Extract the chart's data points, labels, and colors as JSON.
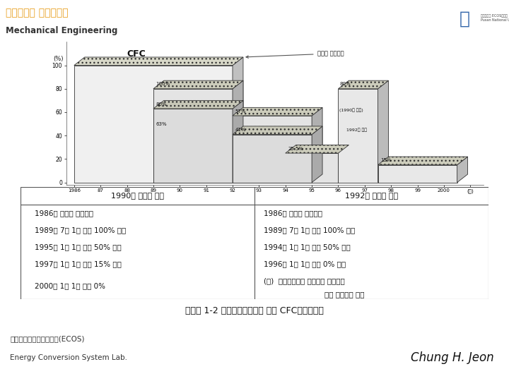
{
  "title_korean": "부산대학교 기계공학부",
  "title_english": "Mechanical Engineering",
  "title_color_korean": "#E8A020",
  "title_color_english": "#333333",
  "slide_bg": "#ffffff",
  "table_header_left": "1990년 개정된 규제",
  "table_header_right": "1992년 개정된 규제",
  "table_left_rows": [
    "1986년 실적을 기준으로",
    "1989년 7월 1일 이후 100% 이하",
    "1995년 1월 1일 이후 50% 이하",
    "1997년 1월 1일 이후 15% 이하",
    "2000년 1월 1일 이후 0%"
  ],
  "table_right_rows": [
    "1986년 실적을 기준으로",
    "1989년 7월 1일 이후 100% 이하",
    "1994년 1월 1일 이후 50% 이하",
    "1996년 1월 1일 이후 0% 이하",
    "(주)  필요불가결한 분아에서 사용하기"
  ],
  "table_right_extra": "위한 생산량은 제외",
  "caption": "〈그림 1-2 몬트리올의정서에 의한 CFC규제일정〉",
  "footer_lab": "에너지변환시스템연구실(ECOS)",
  "footer_lab_en": "Energy Conversion System Lab.",
  "footer_author": "Chung H. Jeon",
  "chart_title": "CFC",
  "chart_annotation": "일본의 삭감추이",
  "chart_years": [
    "1986",
    "87",
    "88",
    "89",
    "90",
    "91",
    "92",
    "93",
    "94",
    "95",
    "96",
    "97",
    "98",
    "99",
    "2000",
    "(年)"
  ],
  "chart_ylabel": "(%)",
  "chart_yticks": [
    0,
    20,
    40,
    60,
    80,
    100
  ],
  "table_border_color": "#555555",
  "text_color": "#111111",
  "bar_face": "#E8E8E8",
  "bar_top": "#CCCCBB",
  "bar_side": "#AAAAAA",
  "bar_edge": "#333333"
}
